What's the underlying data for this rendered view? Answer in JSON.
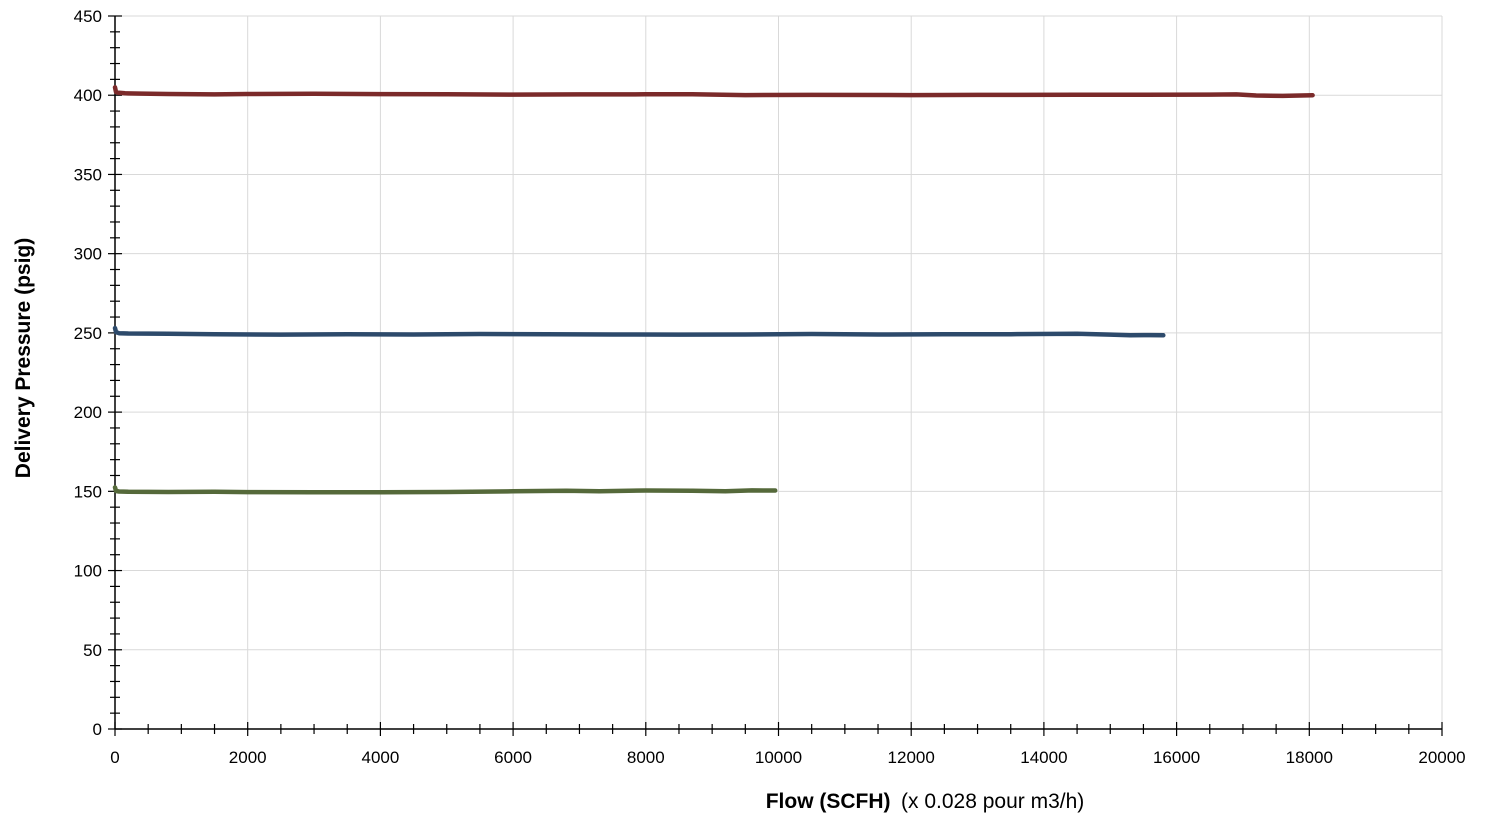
{
  "chart_data": {
    "type": "line",
    "title": "",
    "xlabel": "Flow (SCFH)",
    "xlabel_note": "(x 0.028 pour m3/h)",
    "ylabel": "Delivery Pressure (psig)",
    "xlim": [
      0,
      20000
    ],
    "ylim": [
      0,
      450
    ],
    "x_ticks": [
      0,
      2000,
      4000,
      6000,
      8000,
      10000,
      12000,
      14000,
      16000,
      18000,
      20000
    ],
    "y_ticks": [
      0,
      50,
      100,
      150,
      200,
      250,
      300,
      350,
      400,
      450
    ],
    "x_minor_step": 500,
    "y_minor_step": 10,
    "grid": true,
    "legend": "none",
    "series": [
      {
        "color": "#7b2a2a",
        "x": [
          0,
          15,
          60,
          150,
          400,
          800,
          1500,
          2000,
          3000,
          4000,
          5000,
          6000,
          7000,
          8000,
          8700,
          9500,
          10500,
          12000,
          13000,
          14500,
          15500,
          16500,
          16900,
          17200,
          17600,
          18050
        ],
        "y": [
          405,
          402,
          401.5,
          401.2,
          401,
          400.8,
          400.5,
          400.8,
          400.9,
          400.7,
          400.6,
          400.4,
          400.5,
          400.6,
          400.6,
          400.1,
          400.2,
          400.1,
          400.2,
          400.3,
          400.3,
          400.4,
          400.5,
          399.8,
          399.6,
          400
        ]
      },
      {
        "color": "#2d4a6b",
        "x": [
          0,
          15,
          60,
          200,
          800,
          1500,
          2500,
          3500,
          4500,
          5500,
          6500,
          7500,
          8500,
          9500,
          10500,
          11500,
          12500,
          13500,
          14500,
          15000,
          15300,
          15600,
          15800
        ],
        "y": [
          253,
          250.5,
          249.8,
          249.6,
          249.4,
          249.2,
          248.9,
          249.1,
          249.0,
          249.3,
          249.2,
          249.0,
          248.9,
          249.0,
          249.3,
          249.0,
          249.1,
          249.2,
          249.4,
          248.9,
          248.5,
          248.6,
          248.5
        ]
      },
      {
        "color": "#55693a",
        "x": [
          0,
          15,
          60,
          200,
          800,
          1500,
          2000,
          3000,
          4000,
          5000,
          6000,
          6800,
          7300,
          8000,
          8700,
          9200,
          9600,
          9950
        ],
        "y": [
          152.5,
          150.2,
          149.9,
          149.7,
          149.6,
          149.7,
          149.5,
          149.4,
          149.4,
          149.6,
          150.0,
          150.4,
          150.0,
          150.5,
          150.4,
          150.0,
          150.6,
          150.5
        ]
      }
    ]
  }
}
